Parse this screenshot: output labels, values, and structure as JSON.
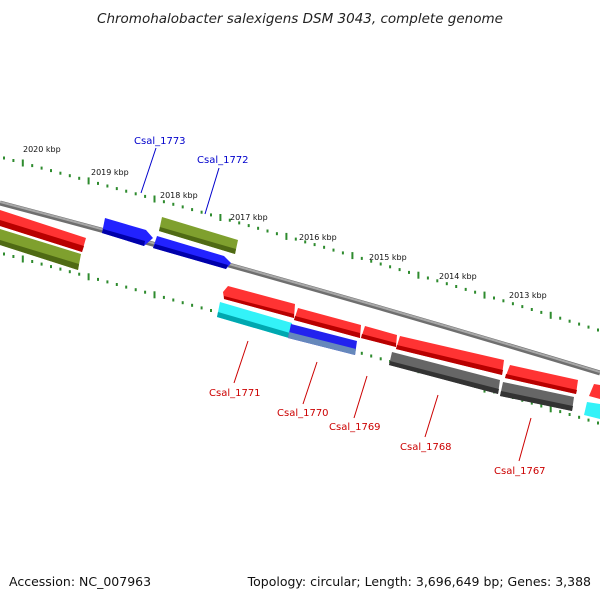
{
  "title": "Chromohalobacter salexigens DSM 3043, complete genome",
  "footer": {
    "accession": "Accession: NC_007963",
    "summary": "Topology: circular; Length: 3,696,649 bp; Genes: 3,388"
  },
  "tick_labels": [
    "2020 kbp",
    "2019 kbp",
    "2018 kbp",
    "2017 kbp",
    "2016 kbp",
    "2015 kbp",
    "2014 kbp",
    "2013 kbp"
  ],
  "gene_labels": {
    "upper": [
      {
        "text": "Csal_1773",
        "color": "#0000cc"
      },
      {
        "text": "Csal_1772",
        "color": "#0000cc"
      }
    ],
    "lower": [
      {
        "text": "Csal_1771",
        "color": "#cc0000"
      },
      {
        "text": "Csal_1770",
        "color": "#cc0000"
      },
      {
        "text": "Csal_1769",
        "color": "#cc0000"
      },
      {
        "text": "Csal_1768",
        "color": "#cc0000"
      },
      {
        "text": "Csal_1767",
        "color": "#cc0000"
      }
    ]
  },
  "colors": {
    "backbone": "#8a8a8a",
    "tick": "#2e8b2e",
    "red": "#ee1111",
    "blue": "#1111dd",
    "olive": "#6b8e23",
    "cyan": "#22e0e8",
    "gray": "#555555",
    "steel": "#5577aa"
  }
}
